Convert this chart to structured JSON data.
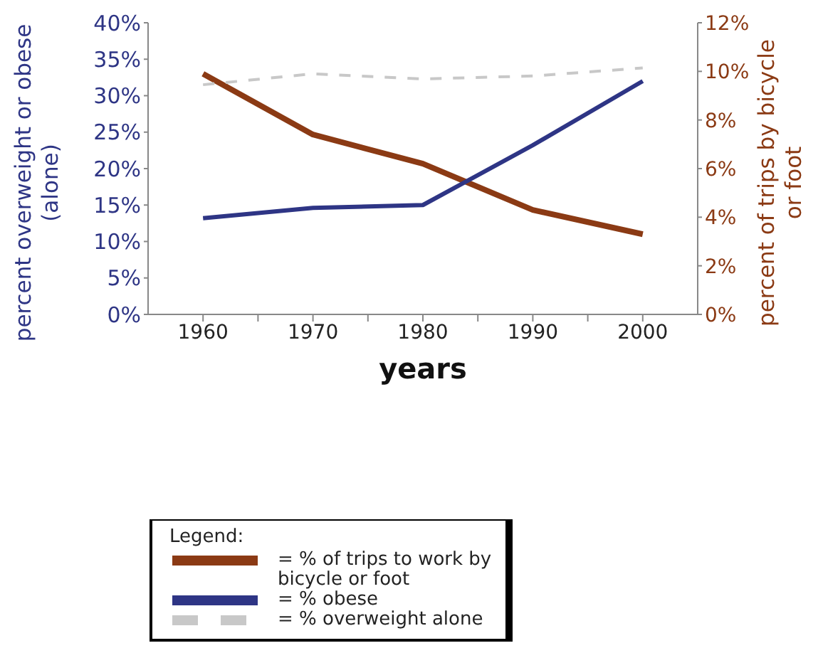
{
  "chart_data": {
    "type": "line",
    "xlabel": "years",
    "ylabel": "percent overweight or obese (alone)",
    "y2label": "percent of trips by bicycle or foot",
    "legend_title": "Legend:",
    "x": [
      1960,
      1970,
      1980,
      1990,
      2000
    ],
    "series": [
      {
        "name": "= % of trips to work by bicycle or foot",
        "color": "#8b3a14",
        "axis": "y2",
        "line_style": "solid",
        "values": [
          9.9,
          7.4,
          6.2,
          4.3,
          3.3
        ]
      },
      {
        "name": "= % obese",
        "color": "#2e3585",
        "line_style": "solid",
        "values": [
          13.2,
          14.6,
          15.0,
          23.2,
          32.0
        ]
      },
      {
        "name": "= % overweight alone",
        "color": "#c8c8c8",
        "line_style": "dashed",
        "values": [
          31.5,
          33.0,
          32.3,
          32.7,
          33.8
        ]
      }
    ],
    "xlim": [
      1955,
      2005
    ],
    "xticks": [
      1960,
      {
        "value": 1965,
        "label": null
      },
      1970,
      {
        "value": 1975,
        "label": null
      },
      1980,
      {
        "value": 1985,
        "label": null
      },
      1990,
      {
        "value": 1995,
        "label": null
      },
      2000
    ],
    "ylim": [
      0,
      40
    ],
    "yticks": [
      {
        "value": 0,
        "label": "0%"
      },
      {
        "value": 5,
        "label": "5%"
      },
      {
        "value": 10,
        "label": "10%"
      },
      {
        "value": 15,
        "label": "15%"
      },
      {
        "value": 20,
        "label": "20%"
      },
      {
        "value": 25,
        "label": "25%"
      },
      {
        "value": 30,
        "label": "30%"
      },
      {
        "value": 35,
        "label": "35%"
      },
      {
        "value": 40,
        "label": "40%"
      }
    ],
    "y2lim": [
      0,
      12
    ],
    "y2ticks": [
      {
        "value": 0,
        "label": "0%"
      },
      {
        "value": 2,
        "label": "2%"
      },
      {
        "value": 4,
        "label": "4%"
      },
      {
        "value": 6,
        "label": "6%"
      },
      {
        "value": 8,
        "label": "8%"
      },
      {
        "value": 10,
        "label": "10%"
      },
      {
        "value": 12,
        "label": "12%"
      }
    ],
    "grid": false,
    "legend": "bottom",
    "marker": "none"
  }
}
